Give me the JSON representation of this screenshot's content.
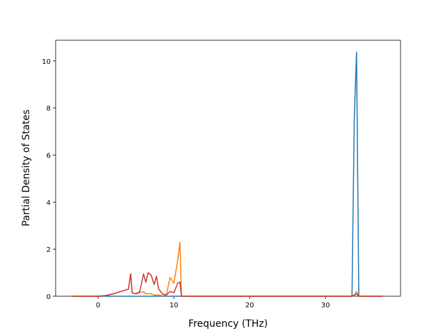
{
  "chart_data": {
    "type": "line",
    "x_label": "Frequency (THz)",
    "y_label": "Partial Density of States",
    "x": [
      -3.5,
      0,
      1,
      2,
      3,
      4,
      4.3,
      4.5,
      5,
      5.5,
      6,
      6.3,
      6.6,
      7,
      7.4,
      7.7,
      8,
      8.5,
      9,
      9.5,
      10,
      10.5,
      10.8,
      11,
      12,
      33.5,
      33.8,
      34.1,
      34.4,
      35,
      37.5
    ],
    "series": [
      {
        "color": "#1f77b4",
        "values": [
          0,
          0,
          0,
          0,
          0,
          0,
          0,
          0,
          0,
          0,
          0,
          0,
          0,
          0,
          0,
          0,
          0,
          0,
          0,
          0,
          0,
          0,
          0,
          0,
          0,
          0,
          7.5,
          10.38,
          0,
          0,
          0
        ]
      },
      {
        "color": "#ff7f0e",
        "values": [
          0,
          0,
          0.03,
          0.1,
          0.2,
          0.3,
          0.95,
          0.15,
          0.1,
          0.15,
          0.2,
          0.1,
          0.12,
          0.1,
          0.05,
          0.05,
          0.05,
          0.02,
          0.05,
          0.8,
          0.55,
          1.5,
          2.28,
          0,
          0,
          0,
          0.05,
          0.2,
          0,
          0,
          0
        ]
      },
      {
        "color": "#c8372d",
        "values": [
          0,
          0,
          0.03,
          0.1,
          0.2,
          0.3,
          0.95,
          0.15,
          0.1,
          0.2,
          0.95,
          0.6,
          1.0,
          0.9,
          0.5,
          0.85,
          0.3,
          0.1,
          0.05,
          0.2,
          0.15,
          0.55,
          0.6,
          0,
          0,
          0,
          0.05,
          0.1,
          0,
          0,
          0
        ]
      }
    ],
    "xlim": [
      -5.6,
      39.9
    ],
    "xticks": [
      0,
      10,
      20,
      30
    ],
    "ylim": [
      0,
      10.88
    ],
    "yticks": [
      0,
      2,
      4,
      6,
      8,
      10
    ]
  }
}
